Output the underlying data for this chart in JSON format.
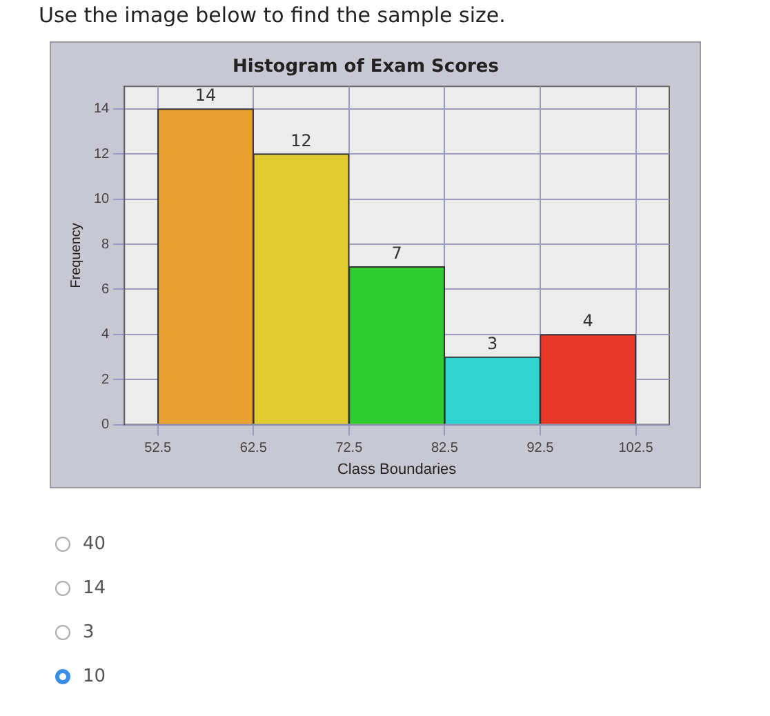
{
  "chart_data": {
    "type": "histogram",
    "title": "Histogram of Exam Scores",
    "xlabel": "Class Boundaries",
    "ylabel": "Frequency",
    "bins": [
      52.5,
      62.5,
      72.5,
      82.5,
      92.5,
      102.5
    ],
    "values": [
      14,
      12,
      7,
      3,
      4
    ],
    "colors": [
      "#e8a030",
      "#e0cc30",
      "#30cc30",
      "#30d4d0",
      "#e83828"
    ],
    "xlim": [
      49,
      106
    ],
    "xticks": [
      52.5,
      62.5,
      72.5,
      82.5,
      92.5,
      102.5
    ],
    "ylim": [
      0,
      15
    ],
    "yticks": [
      0,
      2,
      4,
      6,
      8,
      10,
      12,
      14
    ],
    "grid": true,
    "data_labels": true,
    "annotations": [
      "Use the image below to find the sample size.",
      "40",
      "14",
      "3",
      "10"
    ]
  }
}
